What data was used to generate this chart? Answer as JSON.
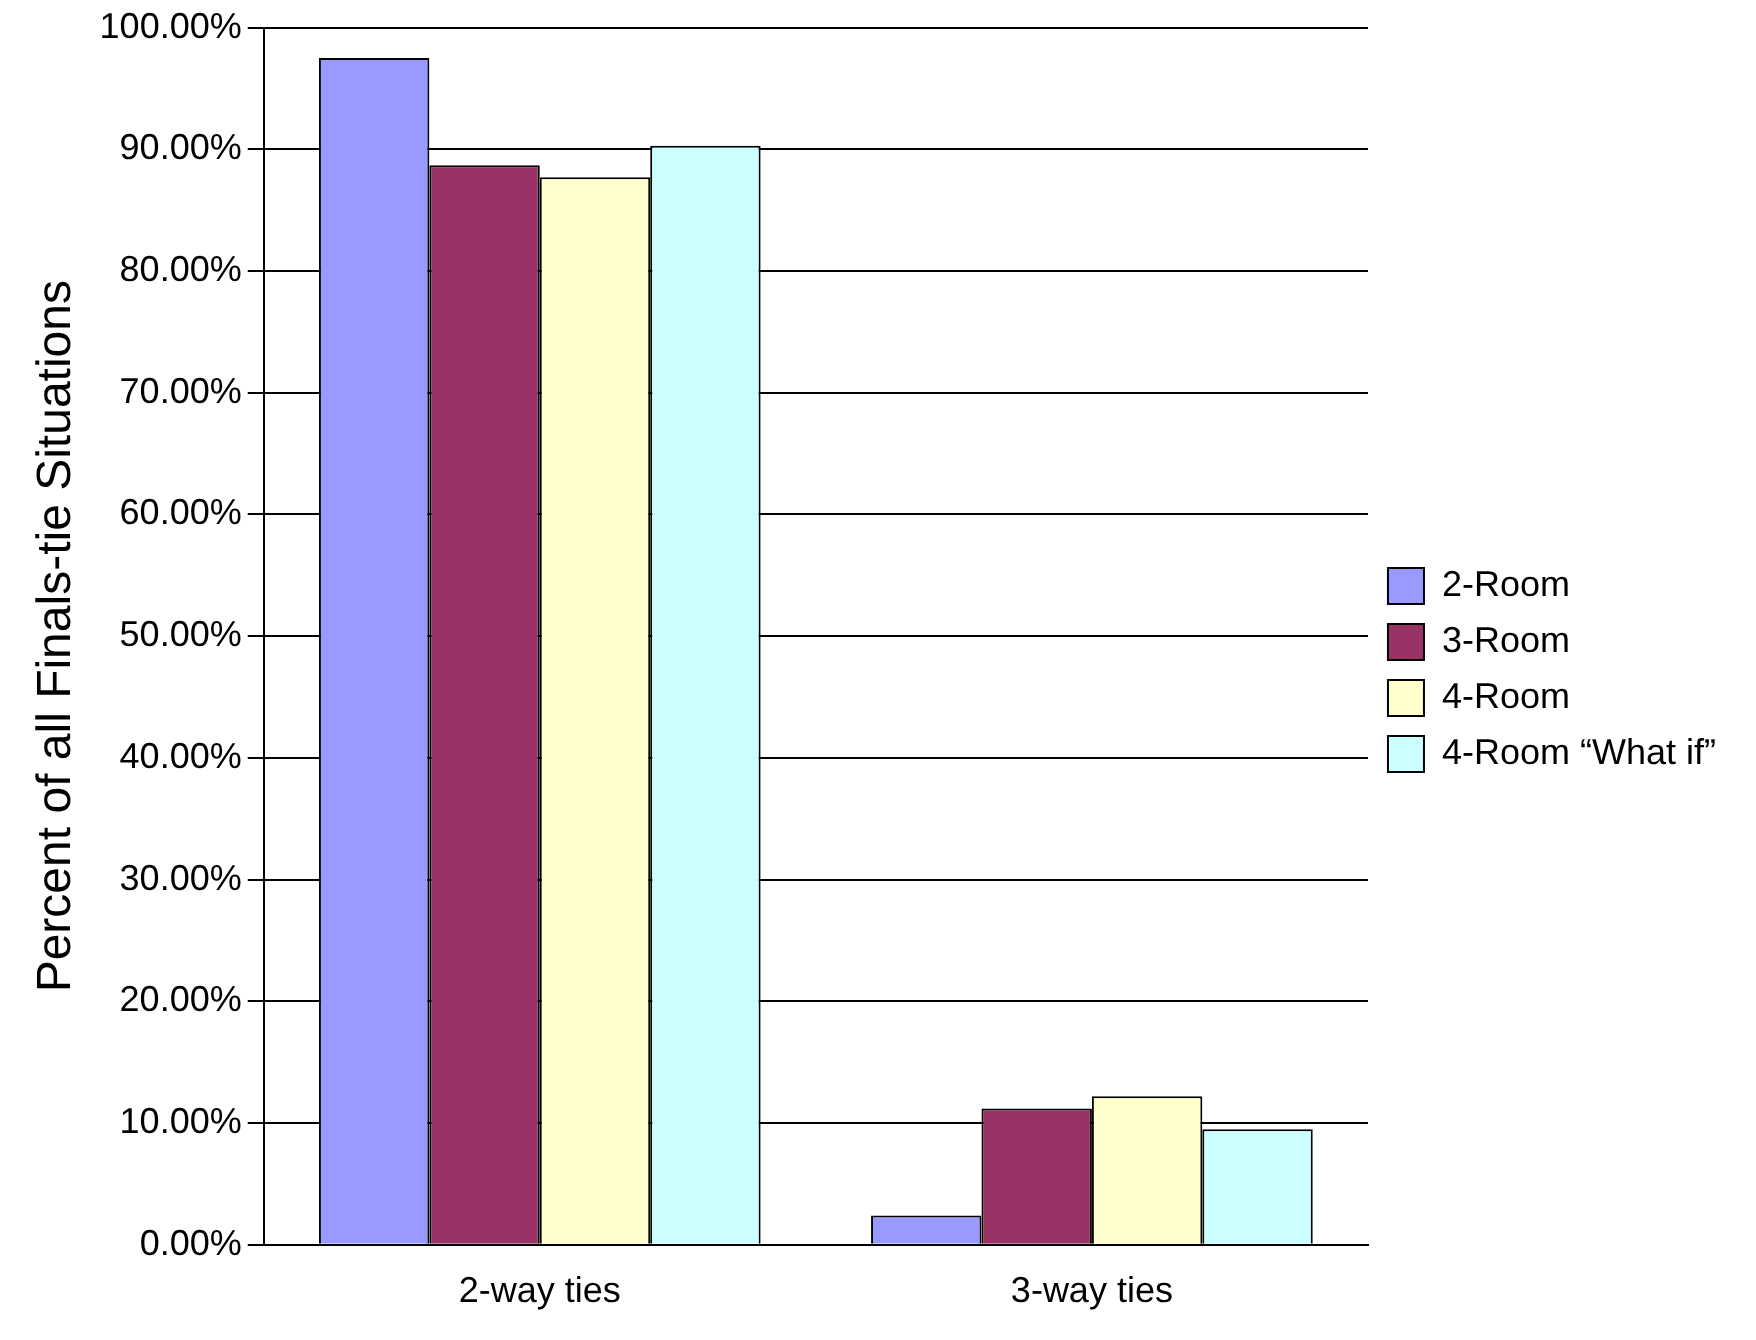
{
  "chart_data": {
    "type": "bar",
    "ylabel": "Percent of all Finals-tie Situations",
    "categories": [
      "2-way ties",
      "3-way ties"
    ],
    "series": [
      {
        "name": "2-Room",
        "color": "#9999ff",
        "values": [
          97.5,
          2.4
        ]
      },
      {
        "name": "3-Room",
        "color": "#993366",
        "values": [
          88.7,
          11.2
        ]
      },
      {
        "name": "4-Room",
        "color": "#ffffcc",
        "values": [
          87.7,
          12.2
        ]
      },
      {
        "name": "4-Room “What if”",
        "color": "#ccffff",
        "values": [
          90.3,
          9.5
        ]
      }
    ],
    "ylim": [
      0,
      100
    ],
    "yticks": [
      {
        "value": 0,
        "label": "0.00%"
      },
      {
        "value": 10,
        "label": "10.00%"
      },
      {
        "value": 20,
        "label": "20.00%"
      },
      {
        "value": 30,
        "label": "30.00%"
      },
      {
        "value": 40,
        "label": "40.00%"
      },
      {
        "value": 50,
        "label": "50.00%"
      },
      {
        "value": 60,
        "label": "60.00%"
      },
      {
        "value": 70,
        "label": "70.00%"
      },
      {
        "value": 80,
        "label": "80.00%"
      },
      {
        "value": 90,
        "label": "90.00%"
      },
      {
        "value": 100,
        "label": "100.00%"
      }
    ],
    "grid": "y",
    "legend": "right"
  }
}
